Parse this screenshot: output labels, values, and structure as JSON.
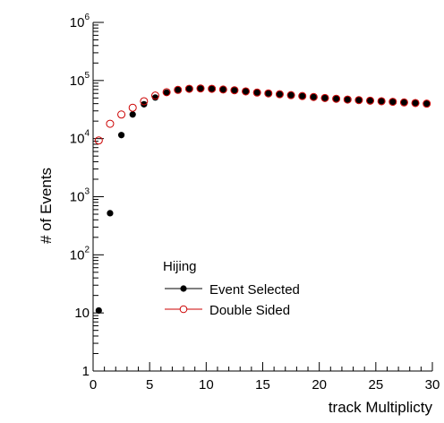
{
  "chart_data": {
    "type": "scatter",
    "title": "",
    "xlabel": "track Multiplicty",
    "ylabel": "# of Events",
    "xlim": [
      0,
      30
    ],
    "ylim": [
      1,
      1000000
    ],
    "yscale": "log",
    "grid": false,
    "legend_position": "center-left",
    "legend_title": "Hijing",
    "x_ticks": [
      "0",
      "5",
      "10",
      "15",
      "20",
      "25",
      "30"
    ],
    "y_tick_values": [
      1,
      10,
      100,
      1000,
      10000,
      100000,
      1000000
    ],
    "y_tick_labels": [
      {
        "base": "1",
        "exp": ""
      },
      {
        "base": "10",
        "exp": ""
      },
      {
        "base": "10",
        "exp": "2"
      },
      {
        "base": "10",
        "exp": "3"
      },
      {
        "base": "10",
        "exp": "4"
      },
      {
        "base": "10",
        "exp": "5"
      },
      {
        "base": "10",
        "exp": "6"
      }
    ],
    "series": [
      {
        "name": "Event Selected",
        "marker": "filled-circle",
        "color": "#000000",
        "x": [
          0.5,
          1.5,
          2.5,
          3.5,
          4.5,
          5.5,
          6.5,
          7.5,
          8.5,
          9.5,
          10.5,
          11.5,
          12.5,
          13.5,
          14.5,
          15.5,
          16.5,
          17.5,
          18.5,
          19.5,
          20.5,
          21.5,
          22.5,
          23.5,
          24.5,
          25.5,
          26.5,
          27.5,
          28.5,
          29.5
        ],
        "y": [
          11,
          520,
          11500,
          26000,
          39000,
          51000,
          62000,
          69000,
          72000,
          73000,
          72000,
          70000,
          68000,
          65000,
          62000,
          60000,
          58000,
          56000,
          54000,
          52000,
          50000,
          48500,
          47000,
          46000,
          45000,
          44000,
          43000,
          42000,
          41000,
          40000
        ]
      },
      {
        "name": "Double Sided",
        "marker": "open-circle",
        "color": "#cc0000",
        "x": [
          0.5,
          1.5,
          2.5,
          3.5,
          4.5,
          5.5,
          6.5,
          7.5,
          8.5,
          9.5,
          10.5,
          11.5,
          12.5,
          13.5,
          14.5,
          15.5,
          16.5,
          17.5,
          18.5,
          19.5,
          20.5,
          21.5,
          22.5,
          23.5,
          24.5,
          25.5,
          26.5,
          27.5,
          28.5,
          29.5
        ],
        "y": [
          9300,
          18000,
          26000,
          34000,
          44000,
          55000,
          63000,
          69000,
          72000,
          73000,
          72000,
          70000,
          68000,
          65000,
          62000,
          60000,
          58000,
          56000,
          54000,
          52000,
          50000,
          48500,
          47000,
          46000,
          45000,
          44000,
          43000,
          42000,
          41000,
          40000
        ]
      }
    ]
  }
}
